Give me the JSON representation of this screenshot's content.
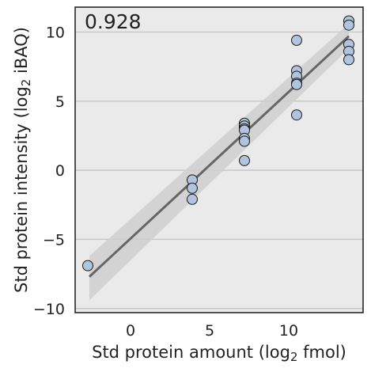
{
  "chart_data": {
    "type": "scatter",
    "xlabel_main": "Std protein amount (log",
    "xlabel_sub": "2",
    "xlabel_tail": " fmol)",
    "ylabel_main": "Std protein intensity (log",
    "ylabel_sub": "2",
    "ylabel_tail": " iBAQ)",
    "annotation": "0.928",
    "xlim": [
      -3.5,
      14.7
    ],
    "ylim": [
      -10.3,
      11.8
    ],
    "xticks": [
      0,
      5,
      10
    ],
    "xtick_labels": [
      "0",
      "5",
      "10"
    ],
    "yticks": [
      -10,
      -5,
      0,
      5,
      10
    ],
    "ytick_labels": [
      "−10",
      "−5",
      "0",
      "5",
      "10"
    ],
    "grid": "horizontal",
    "regression": {
      "x_range": [
        -2.6,
        13.8
      ],
      "y_at_start": -7.7,
      "y_at_end": 9.7,
      "ci_upper_start": -6.2,
      "ci_lower_start": -9.4,
      "ci_upper_end": 10.6,
      "ci_lower_end": 8.8
    },
    "points": [
      {
        "x": -2.7,
        "y": -6.9
      },
      {
        "x": 3.9,
        "y": -0.7
      },
      {
        "x": 3.9,
        "y": -1.3
      },
      {
        "x": 3.9,
        "y": -2.1
      },
      {
        "x": 7.2,
        "y": 3.4
      },
      {
        "x": 7.2,
        "y": 3.2
      },
      {
        "x": 7.2,
        "y": 3.0
      },
      {
        "x": 7.2,
        "y": 2.9
      },
      {
        "x": 7.2,
        "y": 2.3
      },
      {
        "x": 7.2,
        "y": 2.1
      },
      {
        "x": 7.2,
        "y": 0.7
      },
      {
        "x": 10.5,
        "y": 9.4
      },
      {
        "x": 10.5,
        "y": 7.2
      },
      {
        "x": 10.5,
        "y": 6.8
      },
      {
        "x": 10.5,
        "y": 6.3
      },
      {
        "x": 10.5,
        "y": 6.2
      },
      {
        "x": 10.5,
        "y": 4.0
      },
      {
        "x": 13.8,
        "y": 10.8
      },
      {
        "x": 13.8,
        "y": 10.5
      },
      {
        "x": 13.8,
        "y": 9.1
      },
      {
        "x": 13.8,
        "y": 8.6
      },
      {
        "x": 13.8,
        "y": 8.0
      }
    ],
    "colors": {
      "background": "#eaeaea",
      "grid": "#c8c8c8",
      "point_fill": "#b0c4de",
      "point_stroke": "#1a1a1a",
      "line": "#666666",
      "ci_band": "#cfcfcf"
    }
  }
}
